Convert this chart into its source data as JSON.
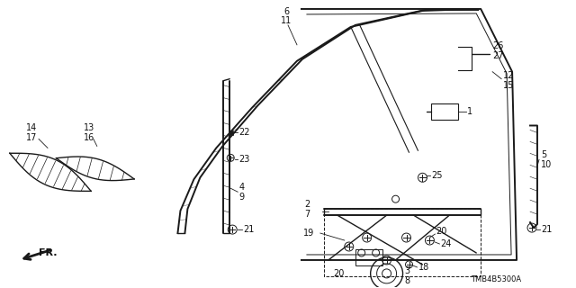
{
  "bg_color": "#ffffff",
  "line_color": "#1a1a1a",
  "label_color": "#111111",
  "model_number": "TMB4B5300A"
}
